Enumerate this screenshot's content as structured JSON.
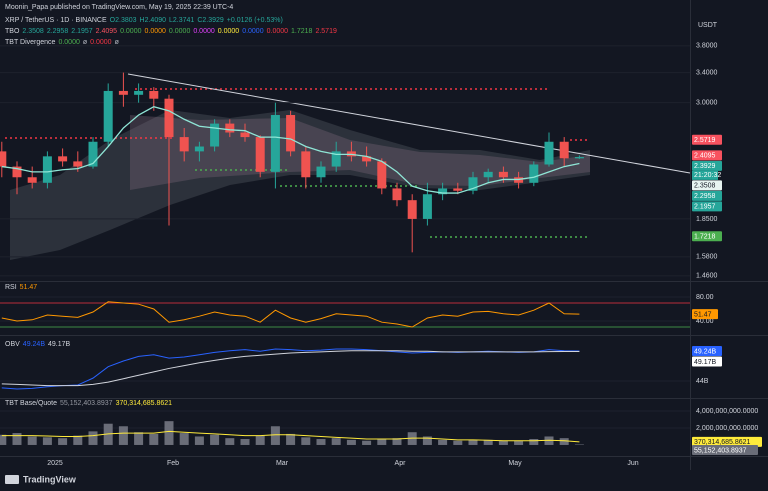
{
  "header": "Moonin_Papa published on TradingView.com, May 19, 2025 22:39 UTC-4",
  "currency": "USDT",
  "legend": {
    "symbol": "XRP / TetherUS · 1D · BINANCE",
    "values": [
      "O2.3803",
      "H2.4090",
      "L2.3741",
      "C2.3929",
      "+0.0126 (+0.53%)"
    ],
    "values_color": "#26a69a",
    "tbo_name": "TBO",
    "tbo_values": [
      {
        "text": "2.3508",
        "color": "#26a69a"
      },
      {
        "text": "2.2958",
        "color": "#26a69a"
      },
      {
        "text": "2.1957",
        "color": "#26a69a"
      },
      {
        "text": "2.4095",
        "color": "#f7525f"
      },
      {
        "text": "0.0000",
        "color": "#4caf50"
      },
      {
        "text": "0.0000",
        "color": "#ff9800"
      },
      {
        "text": "0.0000",
        "color": "#4caf50"
      },
      {
        "text": "0.0000",
        "color": "#e040fb"
      },
      {
        "text": "0.0000",
        "color": "#ffeb3b"
      },
      {
        "text": "0.0000",
        "color": "#2962ff"
      },
      {
        "text": "0.0000",
        "color": "#f23645"
      },
      {
        "text": "1.7218",
        "color": "#4caf50"
      },
      {
        "text": "2.5719",
        "color": "#f23645"
      }
    ],
    "div_name": "TBT Divergence",
    "div_values": [
      {
        "text": "0.0000",
        "color": "#4caf50"
      },
      {
        "text": "ø",
        "color": "#b2b5be"
      },
      {
        "text": "0.0000",
        "color": "#f23645"
      },
      {
        "text": "ø",
        "color": "#b2b5be"
      }
    ]
  },
  "time_axis": [
    "2025",
    "Feb",
    "Mar",
    "Apr",
    "May",
    "Jun"
  ],
  "countdown": "21:20:32",
  "footer": "TradingView",
  "chart_data": [
    {
      "type": "candlestick",
      "log": true,
      "ylim": [
        1.435,
        4.32
      ],
      "yticks": [
        {
          "value": 3.8,
          "label": "3.8000"
        },
        {
          "value": 3.4,
          "label": "3.4000"
        },
        {
          "value": 3.0,
          "label": "3.0000"
        },
        {
          "value": 1.85,
          "label": "1.8500"
        },
        {
          "value": 1.58,
          "label": "1.5800"
        },
        {
          "value": 1.46,
          "label": "1.4600"
        }
      ],
      "up_color": "#26a69a",
      "down_color": "#ef5350",
      "open": [
        2.45,
        2.3,
        2.2,
        2.15,
        2.4,
        2.35,
        2.3,
        2.55,
        3.15,
        3.1,
        3.15,
        3.05,
        2.6,
        2.45,
        2.5,
        2.75,
        2.65,
        2.6,
        2.25,
        2.85,
        2.45,
        2.2,
        2.3,
        2.45,
        2.4,
        2.35,
        2.1,
        2.0,
        1.85,
        2.05,
        2.1,
        2.08,
        2.2,
        2.25,
        2.2,
        2.15,
        2.32,
        2.55,
        2.3803
      ],
      "high": [
        2.55,
        2.35,
        2.3,
        2.45,
        2.48,
        2.45,
        2.6,
        3.25,
        3.4,
        3.25,
        3.2,
        3.1,
        2.7,
        2.55,
        2.8,
        2.8,
        2.75,
        2.62,
        3.0,
        2.9,
        2.5,
        2.35,
        2.55,
        2.55,
        2.5,
        2.38,
        2.15,
        2.05,
        2.15,
        2.15,
        2.15,
        2.25,
        2.28,
        2.3,
        2.25,
        2.35,
        2.65,
        2.6,
        2.409
      ],
      "low": [
        2.2,
        2.05,
        2.1,
        2.1,
        2.3,
        2.25,
        2.28,
        2.5,
        2.95,
        3.0,
        2.9,
        1.8,
        2.35,
        2.35,
        2.45,
        2.6,
        2.55,
        2.2,
        2.1,
        2.4,
        2.1,
        2.15,
        2.25,
        2.35,
        2.3,
        2.05,
        1.95,
        1.61,
        1.8,
        2.0,
        2.05,
        2.05,
        2.15,
        2.15,
        2.1,
        2.12,
        2.3,
        2.3,
        2.3741
      ],
      "close": [
        2.3,
        2.2,
        2.15,
        2.4,
        2.35,
        2.3,
        2.55,
        3.15,
        3.1,
        3.15,
        3.05,
        2.6,
        2.45,
        2.5,
        2.75,
        2.65,
        2.6,
        2.25,
        2.85,
        2.45,
        2.2,
        2.3,
        2.45,
        2.4,
        2.35,
        2.1,
        2.0,
        1.85,
        2.05,
        2.1,
        2.08,
        2.2,
        2.25,
        2.2,
        2.15,
        2.32,
        2.55,
        2.38,
        2.3929
      ],
      "ma": [
        2.3,
        2.28,
        2.25,
        2.25,
        2.27,
        2.28,
        2.33,
        2.5,
        2.7,
        2.85,
        2.95,
        2.9,
        2.8,
        2.72,
        2.7,
        2.68,
        2.67,
        2.6,
        2.6,
        2.58,
        2.5,
        2.45,
        2.42,
        2.42,
        2.4,
        2.35,
        2.25,
        2.12,
        2.08,
        2.06,
        2.06,
        2.1,
        2.15,
        2.18,
        2.18,
        2.2,
        2.25,
        2.3,
        2.33
      ],
      "ma_color": "#8fe6d6",
      "price_labels": [
        {
          "value": 2.5719,
          "label": "2.5719",
          "bg": "#f7525f",
          "fg": "#ffffff"
        },
        {
          "value": 2.4095,
          "label": "2.4095",
          "bg": "#f7525f",
          "fg": "#ffffff"
        },
        {
          "value": 2.3929,
          "label": "2.3929",
          "bg": "#26a69a",
          "fg": "#ffffff"
        },
        {
          "value": 2.3508,
          "label": "2.3508",
          "bg": "#e8f5f2",
          "fg": "#131722"
        },
        {
          "value": 2.2958,
          "label": "2.2958",
          "bg": "#26a69a",
          "fg": "#ffffff"
        },
        {
          "value": 2.1957,
          "label": "2.1957",
          "bg": "#26a69a",
          "fg": "#ffffff"
        },
        {
          "value": 1.7218,
          "label": "1.7218",
          "bg": "#4caf50",
          "fg": "#ffffff"
        }
      ]
    },
    {
      "type": "line",
      "name": "RSI",
      "legend_value": "51.47",
      "color": "#ff9800",
      "ylim": [
        20,
        103.3
      ],
      "yticks": [
        {
          "value": 80,
          "label": "80.00"
        },
        {
          "value": 40,
          "label": "40.00"
        }
      ],
      "levels": [
        {
          "value": 70,
          "color": "#f23645"
        },
        {
          "value": 30,
          "color": "#4caf50"
        }
      ],
      "values": [
        45,
        40,
        42,
        50,
        48,
        46,
        55,
        72,
        70,
        68,
        60,
        38,
        42,
        48,
        55,
        50,
        48,
        38,
        58,
        45,
        38,
        44,
        52,
        50,
        48,
        38,
        35,
        30,
        45,
        50,
        48,
        55,
        56,
        52,
        50,
        58,
        70,
        52,
        51.47
      ],
      "price_labels": [
        {
          "value": 51.47,
          "label": "51.47",
          "bg": "#ff9800",
          "fg": "#131722"
        }
      ]
    },
    {
      "type": "line",
      "name": "OBV",
      "ylim": [
        41.2,
        51.7
      ],
      "yticks": [
        {
          "value": 44,
          "label": "44B"
        }
      ],
      "series": [
        {
          "name": "49.24B",
          "color": "#2962ff",
          "values": [
            42.8,
            42.6,
            42.7,
            43.0,
            43.2,
            43.3,
            44.5,
            46.5,
            47.5,
            48.3,
            48.6,
            48.0,
            48.2,
            48.6,
            49.0,
            49.3,
            49.5,
            49.2,
            49.6,
            49.5,
            49.3,
            49.4,
            49.6,
            49.6,
            49.5,
            49.3,
            49.1,
            48.9,
            49.0,
            49.1,
            49.0,
            49.1,
            49.2,
            49.1,
            49.0,
            49.1,
            49.5,
            49.3,
            49.24
          ]
        },
        {
          "name": "49.17B",
          "color": "#d1d4dc",
          "values": [
            43.5,
            43.4,
            43.3,
            43.2,
            43.2,
            43.2,
            43.4,
            43.8,
            44.4,
            45.0,
            45.6,
            46.2,
            46.7,
            47.2,
            47.6,
            48.0,
            48.3,
            48.5,
            48.7,
            48.9,
            49.0,
            49.1,
            49.2,
            49.3,
            49.3,
            49.3,
            49.3,
            49.2,
            49.2,
            49.1,
            49.1,
            49.1,
            49.1,
            49.1,
            49.1,
            49.1,
            49.15,
            49.17,
            49.17
          ]
        }
      ],
      "price_labels": [
        {
          "value": 49.24,
          "label": "49.24B",
          "bg": "#2962ff",
          "fg": "#ffffff"
        },
        {
          "value": 49.17,
          "label": "49.17B",
          "bg": "#ffffff",
          "fg": "#131722"
        }
      ]
    },
    {
      "type": "bar",
      "name": "TBT Base/Quote",
      "ylim": [
        -1180000000.0,
        5290000000.0
      ],
      "yticks": [
        {
          "value": 4000000000.0,
          "label": "4,000,000,000.0000"
        },
        {
          "value": 2000000000.0,
          "label": "2,000,000,000.0000"
        }
      ],
      "color": "#6a6d78",
      "values": [
        1200000000.0,
        1400000000.0,
        1000000000.0,
        900000000.0,
        800000000.0,
        1100000000.0,
        1600000000.0,
        2500000000.0,
        2200000000.0,
        1500000000.0,
        1300000000.0,
        2800000000.0,
        1400000000.0,
        1000000000.0,
        1200000000.0,
        800000000.0,
        700000000.0,
        1100000000.0,
        2200000000.0,
        1300000000.0,
        900000000.0,
        700000000.0,
        800000000.0,
        600000000.0,
        500000000.0,
        700000000.0,
        800000000.0,
        1500000000.0,
        1000000000.0,
        600000000.0,
        500000000.0,
        600000000.0,
        600000000.0,
        500000000.0,
        500000000.0,
        700000000.0,
        1000000000.0,
        800000000.0,
        55152403.8937
      ],
      "value_labels": {
        "39": "55,152,403.8937"
      },
      "ma_color": "#ffeb3b",
      "ma": [
        1100000000.0,
        1100000000.0,
        1100000000.0,
        1050000000.0,
        1000000000.0,
        1000000000.0,
        1100000000.0,
        1300000000.0,
        1400000000.0,
        1400000000.0,
        1400000000.0,
        1600000000.0,
        1500000000.0,
        1400000000.0,
        1300000000.0,
        1200000000.0,
        1100000000.0,
        1100000000.0,
        1200000000.0,
        1200000000.0,
        1100000000.0,
        1000000000.0,
        900000000.0,
        800000000.0,
        700000000.0,
        700000000.0,
        700000000.0,
        800000000.0,
        800000000.0,
        700000000.0,
        600000000.0,
        600000000.0,
        550000000.0,
        500000000.0,
        500000000.0,
        500000000.0,
        550000000.0,
        500000000.0,
        370314685.8621
      ],
      "legend_values": [
        {
          "text": "55,152,403.8937",
          "color": "#9598a1"
        },
        {
          "text": "370,314,685.8621",
          "color": "#ffeb3b"
        }
      ],
      "price_labels": [
        {
          "value": 370314685.8621,
          "label": "370,314,685.8621",
          "bg": "#ffeb3b",
          "fg": "#131722"
        },
        {
          "value": 55152403.8937,
          "label": "55,152,403.8937",
          "bg": "#6a6d78",
          "fg": "#ffffff"
        }
      ]
    }
  ]
}
